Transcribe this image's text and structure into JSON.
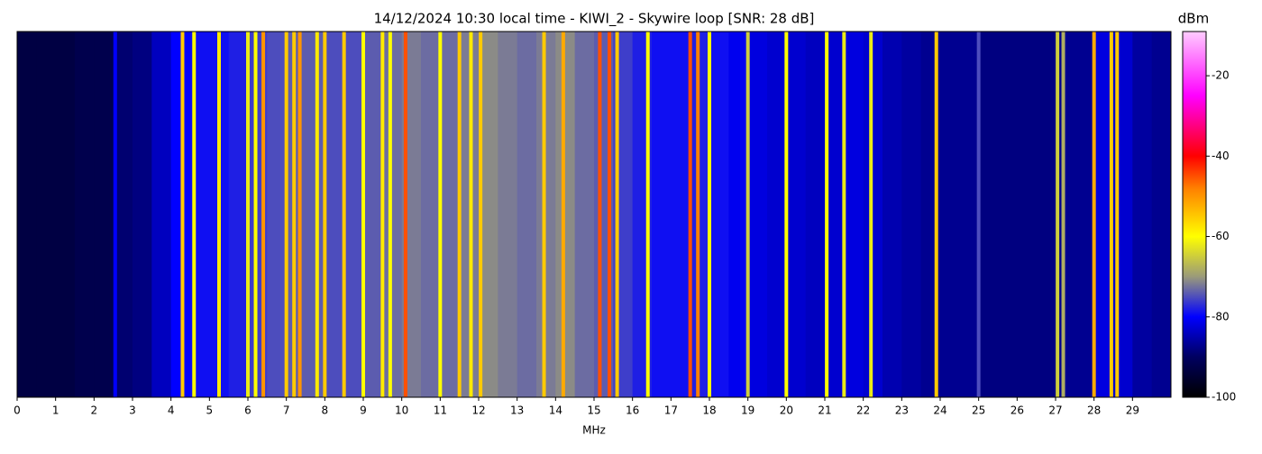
{
  "chart_data": {
    "type": "spectrogram",
    "title": "14/12/2024 10:30 local time - KIWI_2 - Skywire loop [SNR: 28 dB]",
    "x_label": "MHz",
    "colorbar_label": "dBm",
    "xlim": [
      0,
      30
    ],
    "xticks": [
      0,
      1,
      2,
      3,
      4,
      5,
      6,
      7,
      8,
      9,
      10,
      11,
      12,
      13,
      14,
      15,
      16,
      17,
      18,
      19,
      20,
      21,
      22,
      23,
      24,
      25,
      26,
      27,
      28,
      29
    ],
    "clim": [
      -100,
      -9
    ],
    "cticks": [
      -100,
      -80,
      -60,
      -40,
      -20
    ],
    "colorscale": [
      {
        "value": -100,
        "color": "#000000"
      },
      {
        "value": -90,
        "color": "#000060"
      },
      {
        "value": -80,
        "color": "#0000ff"
      },
      {
        "value": -70,
        "color": "#9a9a7a"
      },
      {
        "value": -60,
        "color": "#ffff00"
      },
      {
        "value": -48,
        "color": "#ff8000"
      },
      {
        "value": -40,
        "color": "#ff0000"
      },
      {
        "value": -25,
        "color": "#ff00ff"
      },
      {
        "value": -9,
        "color": "#ffccff"
      }
    ],
    "background": {
      "bin_width": 0.5,
      "x": [
        0,
        0.5,
        1,
        1.5,
        2,
        2.5,
        3,
        3.5,
        4,
        4.5,
        5,
        5.5,
        6,
        6.5,
        7,
        7.5,
        8,
        8.5,
        9,
        9.5,
        10,
        10.5,
        11,
        11.5,
        12,
        12.5,
        13,
        13.5,
        14,
        14.5,
        15,
        15.5,
        16,
        16.5,
        17,
        17.5,
        18,
        18.5,
        19,
        19.5,
        20,
        20.5,
        21,
        21.5,
        22,
        22.5,
        23,
        23.5,
        24,
        24.5,
        25,
        25.5,
        26,
        26.5,
        27,
        27.5,
        28,
        28.5,
        29,
        29.5
      ],
      "values": [
        -93,
        -93,
        -93,
        -92,
        -92,
        -89,
        -88,
        -84,
        -80,
        -79,
        -79,
        -78,
        -76,
        -75,
        -74,
        -74,
        -75,
        -75,
        -74,
        -73,
        -72,
        -73,
        -73,
        -72,
        -71,
        -72,
        -73,
        -72,
        -71,
        -73,
        -74,
        -76,
        -78,
        -79,
        -79,
        -78,
        -79,
        -81,
        -82,
        -83,
        -83,
        -84,
        -83,
        -82,
        -83,
        -85,
        -86,
        -87,
        -87,
        -87,
        -88,
        -88,
        -88,
        -88,
        -87,
        -87,
        -82,
        -83,
        -86,
        -87
      ]
    },
    "signals": {
      "x": [
        2.55,
        4.3,
        4.6,
        5.25,
        6.0,
        6.2,
        6.4,
        7.0,
        7.2,
        7.35,
        7.8,
        8.0,
        8.5,
        9.0,
        9.5,
        9.7,
        10.1,
        11.0,
        11.5,
        11.8,
        12.05,
        13.7,
        14.2,
        15.15,
        15.4,
        15.6,
        16.4,
        17.5,
        17.7,
        18.0,
        19.0,
        20.0,
        21.05,
        21.5,
        22.2,
        23.9,
        25.0,
        27.05,
        27.2,
        28.0,
        28.45,
        28.6
      ],
      "values": [
        -80,
        -55,
        -60,
        -58,
        -62,
        -60,
        -50,
        -55,
        -55,
        -50,
        -58,
        -55,
        -55,
        -60,
        -58,
        -60,
        -45,
        -60,
        -55,
        -58,
        -55,
        -55,
        -52,
        -45,
        -45,
        -55,
        -60,
        -45,
        -48,
        -60,
        -65,
        -60,
        -60,
        -62,
        -62,
        -55,
        -75,
        -65,
        -68,
        -52,
        -55,
        -55
      ]
    }
  }
}
